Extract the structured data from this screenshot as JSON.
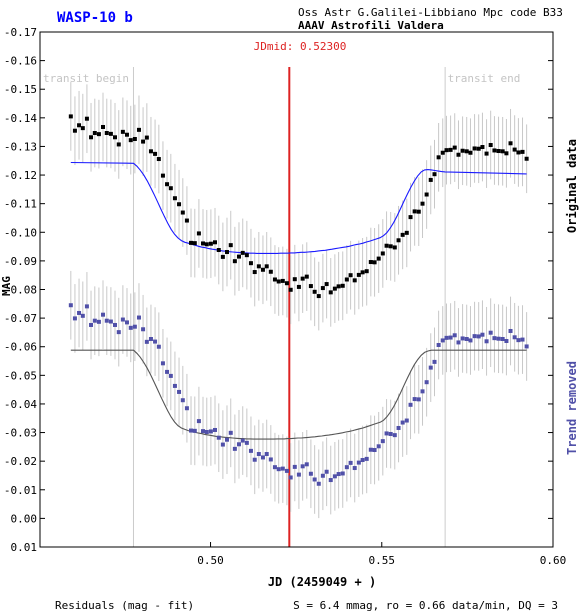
{
  "header": {
    "target_name": "WASP-10 b",
    "observatory": "Oss Astr G.Galilei-Libbiano Mpc code B33",
    "observer": "AAAV Astrofili Valdera"
  },
  "annotations": {
    "jd_mid": "JDmid: 0.52300",
    "transit_begin": "transit begin",
    "transit_end": "transit end",
    "right_label_top": "Original data",
    "right_label_bottom": "Trend removed"
  },
  "footer": {
    "residuals": "Residuals (mag - fit)",
    "stats": "S = 6.4 mmag, ro = 0.66 data/min, DQ = 3"
  },
  "colors": {
    "title": "#0000ff",
    "jd_mid_line": "#dd2222",
    "original_points": "#000000",
    "original_fit": "#1a1aff",
    "detrended_points": "#5050a8",
    "detrended_fit": "#555555",
    "error_bars": "#c8c8c8",
    "transit_lines": "#cccccc"
  },
  "chart_data": {
    "type": "scatter",
    "xlabel": "JD (2459049 + )",
    "ylabel": "MAG",
    "xlim": [
      0.4502,
      0.6
    ],
    "ylim": [
      0.01,
      -0.17
    ],
    "y_inverted": true,
    "x_ticks": [
      0.5,
      0.55,
      0.6
    ],
    "x_tick_labels": [
      "0.50",
      "0.55",
      "0.60"
    ],
    "y_ticks": [
      -0.17,
      -0.16,
      -0.15,
      -0.14,
      -0.13,
      -0.12,
      -0.11,
      -0.1,
      -0.09,
      -0.08,
      -0.07,
      -0.06,
      -0.05,
      -0.04,
      -0.03,
      -0.02,
      -0.01,
      0.0,
      0.01
    ],
    "y_tick_labels": [
      "-0.17",
      "-0.16",
      "-0.15",
      "-0.14",
      "-0.13",
      "-0.12",
      "-0.11",
      "-0.10",
      "-0.09",
      "-0.08",
      "-0.07",
      "-0.06",
      "-0.05",
      "-0.04",
      "-0.03",
      "-0.02",
      "-0.01",
      "0.00",
      "0.01"
    ],
    "jd_mid": 0.523,
    "transit_begin": 0.4775,
    "transit_end": 0.5685,
    "error_bar_halfwidth": 0.012,
    "series": [
      {
        "role": "original",
        "x": [
          0.4592,
          0.4604,
          0.4616,
          0.4627,
          0.4639,
          0.4651,
          0.4662,
          0.4674,
          0.4686,
          0.4697,
          0.4709,
          0.4721,
          0.4732,
          0.4744,
          0.4756,
          0.4767,
          0.4779,
          0.4791,
          0.4803,
          0.4814,
          0.4826,
          0.4838,
          0.4849,
          0.4861,
          0.4873,
          0.4884,
          0.4896,
          0.4908,
          0.4919,
          0.4931,
          0.4943,
          0.4954,
          0.4966,
          0.4978,
          0.4989,
          0.5001,
          0.5013,
          0.5024,
          0.5036,
          0.5048,
          0.5059,
          0.5071,
          0.5083,
          0.5094,
          0.5106,
          0.5118,
          0.5129,
          0.5141,
          0.5153,
          0.5164,
          0.5176,
          0.5188,
          0.5199,
          0.5211,
          0.5223,
          0.5234,
          0.5246,
          0.5258,
          0.5269,
          0.5281,
          0.5293,
          0.5304,
          0.5316,
          0.5328,
          0.5339,
          0.5351,
          0.5363,
          0.5374,
          0.5386,
          0.5398,
          0.5409,
          0.5421,
          0.5433,
          0.5444,
          0.5456,
          0.5468,
          0.5479,
          0.5491,
          0.5503,
          0.5514,
          0.5526,
          0.5538,
          0.5549,
          0.5561,
          0.5573,
          0.5584,
          0.5596,
          0.5608,
          0.5619,
          0.5631,
          0.5643,
          0.5654,
          0.5666,
          0.5678,
          0.5689,
          0.5701,
          0.5713,
          0.5724,
          0.5736,
          0.5748,
          0.5759,
          0.5771,
          0.5783,
          0.5794,
          0.5806,
          0.5818,
          0.5829,
          0.5841,
          0.5853,
          0.5864,
          0.5876,
          0.5888,
          0.5899,
          0.5911,
          0.5923
        ],
        "y": [
          -0.1405,
          -0.1355,
          -0.1374,
          -0.1364,
          -0.1397,
          -0.1332,
          -0.1347,
          -0.1343,
          -0.1368,
          -0.1347,
          -0.1344,
          -0.1332,
          -0.1307,
          -0.1351,
          -0.1341,
          -0.1322,
          -0.1326,
          -0.1358,
          -0.1317,
          -0.1331,
          -0.1283,
          -0.1274,
          -0.1256,
          -0.1198,
          -0.1168,
          -0.1154,
          -0.1119,
          -0.1098,
          -0.1069,
          -0.1041,
          -0.0963,
          -0.0962,
          -0.0996,
          -0.0961,
          -0.0958,
          -0.096,
          -0.0965,
          -0.0938,
          -0.0914,
          -0.0931,
          -0.0955,
          -0.0899,
          -0.0915,
          -0.0928,
          -0.092,
          -0.0892,
          -0.0861,
          -0.0881,
          -0.0869,
          -0.0881,
          -0.0862,
          -0.0835,
          -0.0828,
          -0.083,
          -0.0822,
          -0.0799,
          -0.0836,
          -0.0809,
          -0.0838,
          -0.0845,
          -0.0812,
          -0.0792,
          -0.0777,
          -0.0805,
          -0.0819,
          -0.079,
          -0.0803,
          -0.0811,
          -0.0813,
          -0.0835,
          -0.085,
          -0.0832,
          -0.0851,
          -0.086,
          -0.0864,
          -0.0896,
          -0.0895,
          -0.0908,
          -0.0926,
          -0.0953,
          -0.0951,
          -0.0947,
          -0.0972,
          -0.0991,
          -0.0998,
          -0.1053,
          -0.1073,
          -0.1072,
          -0.11,
          -0.1132,
          -0.1183,
          -0.1203,
          -0.1262,
          -0.1278,
          -0.1287,
          -0.1288,
          -0.1296,
          -0.1271,
          -0.1285,
          -0.1283,
          -0.1278,
          -0.1293,
          -0.1292,
          -0.1298,
          -0.1275,
          -0.1305,
          -0.1286,
          -0.1284,
          -0.1283,
          -0.1276,
          -0.1311,
          -0.1289,
          -0.1279,
          -0.1281,
          -0.1257
        ]
      },
      {
        "role": "original-fit",
        "x": [
          0.4592,
          0.4775,
          0.4785,
          0.4795,
          0.4805,
          0.4815,
          0.4825,
          0.4835,
          0.4845,
          0.4855,
          0.4865,
          0.4875,
          0.4885,
          0.4895,
          0.4905,
          0.4915,
          0.4925,
          0.4935,
          0.4945,
          0.4955,
          0.4965,
          0.4975,
          0.4985,
          0.4995,
          0.5005,
          0.5015,
          0.5025,
          0.5035,
          0.5045,
          0.5055,
          0.5065,
          0.5075,
          0.5085,
          0.5095,
          0.5105,
          0.5115,
          0.5125,
          0.5135,
          0.5145,
          0.5155,
          0.5165,
          0.5175,
          0.5185,
          0.5195,
          0.5205,
          0.5215,
          0.5225,
          0.5235,
          0.5245,
          0.5255,
          0.5265,
          0.5275,
          0.5285,
          0.5295,
          0.5305,
          0.5315,
          0.5325,
          0.5335,
          0.5345,
          0.5355,
          0.5365,
          0.5375,
          0.5385,
          0.5395,
          0.5405,
          0.5415,
          0.5425,
          0.5435,
          0.5445,
          0.5455,
          0.5465,
          0.5475,
          0.5485,
          0.5495,
          0.5505,
          0.5515,
          0.5525,
          0.5535,
          0.5545,
          0.5555,
          0.5565,
          0.5575,
          0.5585,
          0.5595,
          0.5605,
          0.5615,
          0.5625,
          0.5635,
          0.5645,
          0.5655,
          0.5665,
          0.5675,
          0.5685,
          0.5923
        ],
        "y": [
          -0.1244,
          -0.1241,
          -0.1231,
          -0.1217,
          -0.12,
          -0.118,
          -0.1157,
          -0.1133,
          -0.1107,
          -0.1081,
          -0.1056,
          -0.1032,
          -0.101,
          -0.0993,
          -0.098,
          -0.0971,
          -0.0965,
          -0.0962,
          -0.0958,
          -0.0955,
          -0.0951,
          -0.0948,
          -0.0946,
          -0.0943,
          -0.0941,
          -0.0939,
          -0.0937,
          -0.0935,
          -0.0934,
          -0.0932,
          -0.0931,
          -0.093,
          -0.0929,
          -0.0928,
          -0.0928,
          -0.0927,
          -0.0927,
          -0.0926,
          -0.0926,
          -0.0926,
          -0.0926,
          -0.0926,
          -0.0926,
          -0.0926,
          -0.0927,
          -0.0927,
          -0.0927,
          -0.0928,
          -0.0928,
          -0.0929,
          -0.093,
          -0.093,
          -0.0931,
          -0.0932,
          -0.0933,
          -0.0935,
          -0.0936,
          -0.0937,
          -0.0939,
          -0.0941,
          -0.0943,
          -0.0945,
          -0.0947,
          -0.0949,
          -0.0951,
          -0.0954,
          -0.0957,
          -0.0959,
          -0.0962,
          -0.0966,
          -0.0969,
          -0.0973,
          -0.0977,
          -0.0981,
          -0.0988,
          -0.0999,
          -0.1015,
          -0.1035,
          -0.1058,
          -0.1083,
          -0.1109,
          -0.1134,
          -0.1158,
          -0.1179,
          -0.1197,
          -0.1211,
          -0.1218,
          -0.1219,
          -0.1218,
          -0.1216,
          -0.1214,
          -0.1212,
          -0.1211,
          -0.1204
        ]
      },
      {
        "role": "detrended",
        "x": [
          0.4592,
          0.4604,
          0.4616,
          0.4627,
          0.4639,
          0.4651,
          0.4662,
          0.4674,
          0.4686,
          0.4697,
          0.4709,
          0.4721,
          0.4732,
          0.4744,
          0.4756,
          0.4767,
          0.4779,
          0.4791,
          0.4803,
          0.4814,
          0.4826,
          0.4838,
          0.4849,
          0.4861,
          0.4873,
          0.4884,
          0.4896,
          0.4908,
          0.4919,
          0.4931,
          0.4943,
          0.4954,
          0.4966,
          0.4978,
          0.4989,
          0.5001,
          0.5013,
          0.5024,
          0.5036,
          0.5048,
          0.5059,
          0.5071,
          0.5083,
          0.5094,
          0.5106,
          0.5118,
          0.5129,
          0.5141,
          0.5153,
          0.5164,
          0.5176,
          0.5188,
          0.5199,
          0.5211,
          0.5223,
          0.5234,
          0.5246,
          0.5258,
          0.5269,
          0.5281,
          0.5293,
          0.5304,
          0.5316,
          0.5328,
          0.5339,
          0.5351,
          0.5363,
          0.5374,
          0.5386,
          0.5398,
          0.5409,
          0.5421,
          0.5433,
          0.5444,
          0.5456,
          0.5468,
          0.5479,
          0.5491,
          0.5503,
          0.5514,
          0.5526,
          0.5538,
          0.5549,
          0.5561,
          0.5573,
          0.5584,
          0.5596,
          0.5608,
          0.5619,
          0.5631,
          0.5643,
          0.5654,
          0.5666,
          0.5678,
          0.5689,
          0.5701,
          0.5713,
          0.5724,
          0.5736,
          0.5748,
          0.5759,
          0.5771,
          0.5783,
          0.5794,
          0.5806,
          0.5818,
          0.5829,
          0.5841,
          0.5853,
          0.5864,
          0.5876,
          0.5888,
          0.5899,
          0.5911,
          0.5923
        ],
        "y": [
          -0.0745,
          -0.0699,
          -0.0718,
          -0.0708,
          -0.0741,
          -0.0676,
          -0.0691,
          -0.0687,
          -0.0712,
          -0.0691,
          -0.0688,
          -0.0676,
          -0.0651,
          -0.0695,
          -0.0685,
          -0.0666,
          -0.067,
          -0.0702,
          -0.0661,
          -0.0617,
          -0.0627,
          -0.0618,
          -0.06,
          -0.0542,
          -0.0512,
          -0.0498,
          -0.0463,
          -0.0442,
          -0.0413,
          -0.0385,
          -0.0307,
          -0.0306,
          -0.034,
          -0.0305,
          -0.0302,
          -0.0304,
          -0.0309,
          -0.0282,
          -0.0258,
          -0.0275,
          -0.0299,
          -0.0243,
          -0.0259,
          -0.0272,
          -0.0264,
          -0.0236,
          -0.0205,
          -0.0225,
          -0.0213,
          -0.0225,
          -0.0206,
          -0.0179,
          -0.0172,
          -0.0174,
          -0.0166,
          -0.0143,
          -0.018,
          -0.0153,
          -0.0182,
          -0.0189,
          -0.0156,
          -0.0136,
          -0.0121,
          -0.0149,
          -0.0163,
          -0.0134,
          -0.0147,
          -0.0155,
          -0.0157,
          -0.0179,
          -0.0194,
          -0.0176,
          -0.0195,
          -0.0204,
          -0.0208,
          -0.024,
          -0.0239,
          -0.0252,
          -0.027,
          -0.0297,
          -0.0295,
          -0.0291,
          -0.0316,
          -0.0335,
          -0.0342,
          -0.0397,
          -0.0417,
          -0.0416,
          -0.0444,
          -0.0476,
          -0.0527,
          -0.0547,
          -0.0606,
          -0.0622,
          -0.0631,
          -0.0632,
          -0.064,
          -0.0615,
          -0.0629,
          -0.0627,
          -0.0622,
          -0.0637,
          -0.0636,
          -0.0642,
          -0.0619,
          -0.0649,
          -0.063,
          -0.0628,
          -0.0627,
          -0.062,
          -0.0655,
          -0.0633,
          -0.0623,
          -0.0625,
          -0.0601
        ]
      },
      {
        "role": "detrended-fit",
        "x": [
          0.4592,
          0.4775,
          0.4785,
          0.4795,
          0.4805,
          0.4815,
          0.4825,
          0.4835,
          0.4845,
          0.4855,
          0.4865,
          0.4875,
          0.4885,
          0.4895,
          0.4905,
          0.4915,
          0.4925,
          0.4935,
          0.4945,
          0.4955,
          0.4965,
          0.4975,
          0.4985,
          0.4995,
          0.5005,
          0.5015,
          0.5025,
          0.5035,
          0.5045,
          0.5055,
          0.5065,
          0.5075,
          0.5085,
          0.5095,
          0.5105,
          0.5115,
          0.5125,
          0.5135,
          0.5145,
          0.5155,
          0.5165,
          0.5175,
          0.5185,
          0.5195,
          0.5205,
          0.5215,
          0.5225,
          0.5235,
          0.5245,
          0.5255,
          0.5265,
          0.5275,
          0.5285,
          0.5295,
          0.5305,
          0.5315,
          0.5325,
          0.5335,
          0.5345,
          0.5355,
          0.5365,
          0.5375,
          0.5385,
          0.5395,
          0.5405,
          0.5415,
          0.5425,
          0.5435,
          0.5445,
          0.5455,
          0.5465,
          0.5475,
          0.5485,
          0.5495,
          0.5505,
          0.5515,
          0.5525,
          0.5535,
          0.5545,
          0.5555,
          0.5565,
          0.5575,
          0.5585,
          0.5595,
          0.5605,
          0.5615,
          0.5625,
          0.5635,
          0.5645,
          0.5655,
          0.5665,
          0.5675,
          0.5685,
          0.5923
        ],
        "y": [
          -0.0588,
          -0.0588,
          -0.0577,
          -0.0563,
          -0.0545,
          -0.0525,
          -0.0502,
          -0.0477,
          -0.0451,
          -0.0425,
          -0.04,
          -0.0376,
          -0.0354,
          -0.0337,
          -0.0324,
          -0.0316,
          -0.0311,
          -0.0307,
          -0.0304,
          -0.0301,
          -0.0298,
          -0.0296,
          -0.0293,
          -0.0291,
          -0.0289,
          -0.0287,
          -0.0286,
          -0.0284,
          -0.0283,
          -0.0282,
          -0.0281,
          -0.028,
          -0.0279,
          -0.0279,
          -0.0278,
          -0.0278,
          -0.0277,
          -0.0277,
          -0.0277,
          -0.0277,
          -0.0277,
          -0.0277,
          -0.0277,
          -0.0278,
          -0.0278,
          -0.0278,
          -0.0279,
          -0.0279,
          -0.028,
          -0.0281,
          -0.0281,
          -0.0282,
          -0.0283,
          -0.0284,
          -0.0285,
          -0.0287,
          -0.0288,
          -0.029,
          -0.0291,
          -0.0293,
          -0.0295,
          -0.0297,
          -0.0299,
          -0.0302,
          -0.0304,
          -0.0307,
          -0.031,
          -0.0313,
          -0.0316,
          -0.032,
          -0.0324,
          -0.0328,
          -0.0332,
          -0.0336,
          -0.0343,
          -0.0355,
          -0.0371,
          -0.0391,
          -0.0414,
          -0.0439,
          -0.0465,
          -0.0491,
          -0.0515,
          -0.0537,
          -0.0555,
          -0.057,
          -0.058,
          -0.0585,
          -0.0588,
          -0.0588,
          -0.0588,
          -0.0588,
          -0.0588,
          -0.0588
        ]
      }
    ]
  }
}
